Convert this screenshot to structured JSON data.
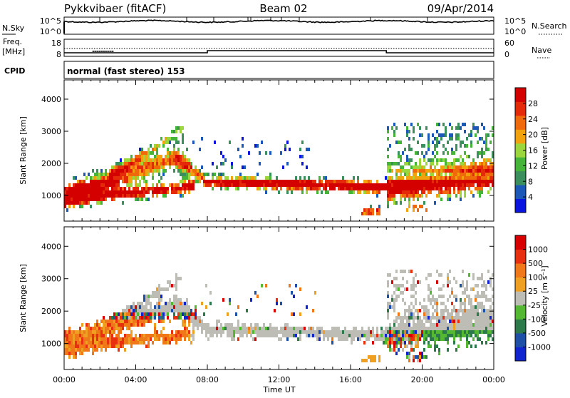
{
  "header": {
    "station": "Pykkvibaer (fitACF)",
    "beam": "Beam 02",
    "date": "09/Apr/2014"
  },
  "strip_labels": {
    "nsky": "N.Sky",
    "nsearch": "N.Search",
    "freq": "Freq.",
    "freq_unit": "[MHz]",
    "nave": "Nave",
    "cpid": "CPID",
    "mode": "normal (fast stereo) 153"
  },
  "strip_ticks": {
    "noise_left": [
      "10^5",
      "10^0"
    ],
    "noise_right": [
      "10^5",
      "10^0"
    ],
    "freq_left": [
      "18",
      "8"
    ],
    "nave_right": [
      "60",
      "0"
    ]
  },
  "colors": {
    "power": [
      "#0a14e0",
      "#1b58b8",
      "#3a8f5c",
      "#45b53a",
      "#9ad63c",
      "#f2a20c",
      "#f06a0c",
      "#e52a0a",
      "#d40000"
    ],
    "velocity": [
      "#1024d0",
      "#1e50a8",
      "#2c7a4a",
      "#54b832",
      "#bdbdb5",
      "#f0a020",
      "#f07818",
      "#e83010",
      "#d80000"
    ]
  },
  "chart_data": [
    {
      "type": "heatmap",
      "title": "Power",
      "ylabel": "Slant Range [km]",
      "xlabel": "Time UT",
      "ylim": [
        200,
        4600
      ],
      "yticks": [
        "4000",
        "3000",
        "2000",
        "1000"
      ],
      "xlim": [
        "00:00",
        "24:00"
      ],
      "xticks": [
        "00:00",
        "04:00",
        "08:00",
        "12:00",
        "16:00",
        "20:00",
        "00:00"
      ],
      "colorbar": {
        "label": "Power [dB]",
        "ticks": [
          "28",
          "24",
          "20",
          "16",
          "12",
          "8",
          "4"
        ]
      }
    },
    {
      "type": "heatmap",
      "title": "Velocity",
      "ylabel": "Slant Range [km]",
      "xlabel": "Time UT",
      "ylim": [
        200,
        4600
      ],
      "yticks": [
        "4000",
        "3000",
        "2000",
        "1000"
      ],
      "xlim": [
        "00:00",
        "24:00"
      ],
      "xticks": [
        "00:00",
        "04:00",
        "08:00",
        "12:00",
        "16:00",
        "20:00",
        "00:00"
      ],
      "colorbar": {
        "label": "Velocity [m s⁻¹]",
        "ticks": [
          "1000",
          "500",
          "100",
          "25",
          "-25",
          "-100",
          "-500",
          "-1000"
        ]
      }
    }
  ],
  "axis": {
    "time_label": "Time UT"
  }
}
